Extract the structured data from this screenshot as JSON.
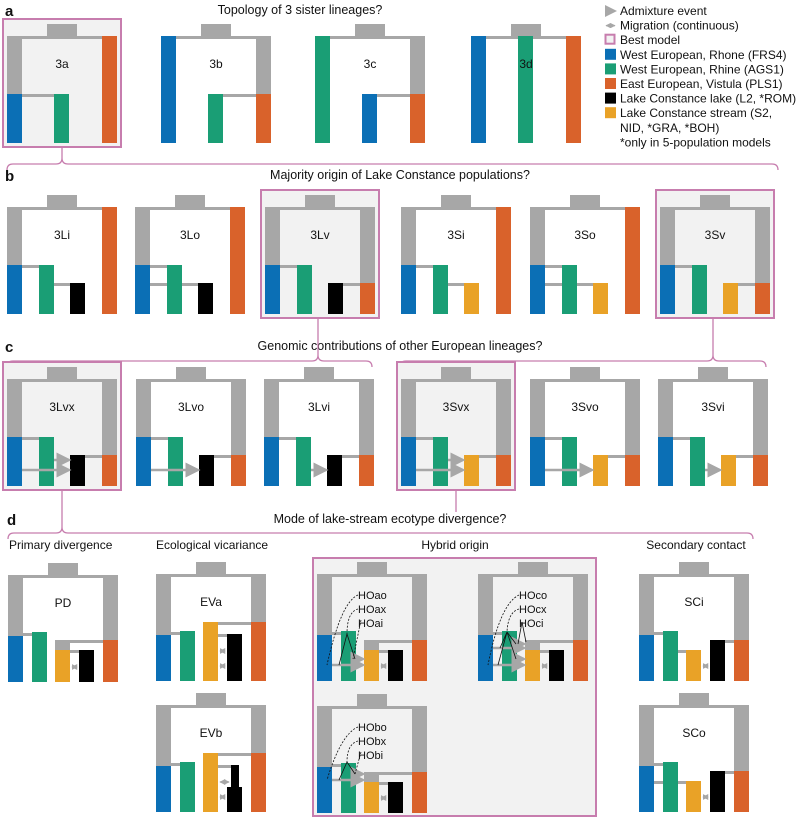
{
  "sections": {
    "a": {
      "letter": "a",
      "title": "Topology of 3 sister lineages?"
    },
    "b": {
      "letter": "b",
      "title": "Majority origin of Lake Constance populations?"
    },
    "c": {
      "letter": "c",
      "title": "Genomic contributions of other European lineages?"
    },
    "d": {
      "letter": "d",
      "title": "Mode of lake-stream ecotype divergence?",
      "groups": {
        "primary": "Primary divergence",
        "ecological": "Ecological vicariance",
        "hybrid": "Hybrid origin",
        "secondary": "Secondary contact"
      }
    }
  },
  "legend": [
    {
      "icon": "admixture-arrow",
      "label": "Admixture event"
    },
    {
      "icon": "migration-arrow",
      "label": "Migration (continuous)"
    },
    {
      "icon": "best-model-box",
      "label": "Best model"
    },
    {
      "icon": "swatch",
      "color": "#0B6FB5",
      "label": "West European, Rhone (FRS4)"
    },
    {
      "icon": "swatch",
      "color": "#1A9E75",
      "label": "West European, Rhine (AGS1)"
    },
    {
      "icon": "swatch",
      "color": "#D9622B",
      "label": "East European, Vistula (PLS1)"
    },
    {
      "icon": "swatch",
      "color": "#000000",
      "label": "Lake Constance lake (L2, *ROM)"
    },
    {
      "icon": "swatch",
      "color": "#E9A227",
      "label": "Lake Constance stream (S2,"
    },
    {
      "icon": "none",
      "label": "NID, *GRA, *BOH)"
    },
    {
      "icon": "none",
      "label": "*only in 5-population models"
    }
  ],
  "colors": {
    "rhone": "#0B6FB5",
    "rhine": "#1A9E75",
    "vistula": "#D9622B",
    "lake": "#000000",
    "stream": "#E9A227",
    "ancestral": "#A7A7A7",
    "best": "#C77DAE",
    "best_fill": "#F2F2F2"
  },
  "models": {
    "3a": {
      "label": "3a",
      "best": true
    },
    "3b": {
      "label": "3b"
    },
    "3c": {
      "label": "3c"
    },
    "3d": {
      "label": "3d"
    },
    "3Li": {
      "label": "3Li"
    },
    "3Lo": {
      "label": "3Lo"
    },
    "3Lv": {
      "label": "3Lv",
      "best": true
    },
    "3Si": {
      "label": "3Si"
    },
    "3So": {
      "label": "3So"
    },
    "3Sv": {
      "label": "3Sv",
      "best": true
    },
    "3Lvx": {
      "label": "3Lvx",
      "best": true
    },
    "3Lvo": {
      "label": "3Lvo"
    },
    "3Lvi": {
      "label": "3Lvi"
    },
    "3Svx": {
      "label": "3Svx",
      "best": true
    },
    "3Svo": {
      "label": "3Svo"
    },
    "3Svi": {
      "label": "3Svi"
    },
    "PD": {
      "label": "PD"
    },
    "EVa": {
      "label": "EVa"
    },
    "EVb": {
      "label": "EVb"
    },
    "HOa": {
      "labels": [
        "HOao",
        "HOax",
        "HOai"
      ]
    },
    "HOc": {
      "labels": [
        "HOco",
        "HOcx",
        "HOci"
      ]
    },
    "HOb": {
      "labels": [
        "HObo",
        "HObx",
        "HObi"
      ]
    },
    "SCi": {
      "label": "SCi"
    },
    "SCo": {
      "label": "SCo"
    }
  }
}
